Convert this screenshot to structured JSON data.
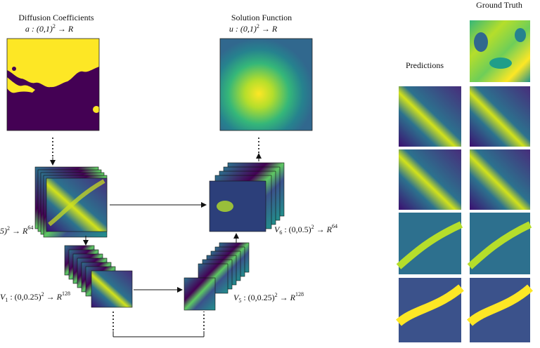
{
  "labels": {
    "diffusion_title": "Diffusion Coefficients",
    "diffusion_map": "a : (0,1)",
    "diffusion_map_tail": " → R",
    "solution_title": "Solution Function",
    "solution_map": "u : (0,1)",
    "solution_map_tail": " → R",
    "v_left": "5)",
    "v_left_tail": " → R",
    "v1": "V",
    "v1_sub": "1",
    "v1_rest": " : (0,0.25)",
    "v1_tail": " → R",
    "v5": "V",
    "v5_sub": "5",
    "v5_rest": " : (0,0.25)",
    "v5_tail": " → R",
    "v6": "V",
    "v6_sub": "6",
    "v6_rest": " : (0,0.5)",
    "v6_tail": " → R",
    "sq": "2",
    "dim64": "64",
    "dim128": "128",
    "predictions": "Predictions",
    "ground_truth": "Ground Truth"
  },
  "colors": {
    "viridis_dark": "#440154",
    "viridis_mid": "#21918c",
    "viridis_light": "#5ec962",
    "viridis_bright": "#fde725"
  },
  "panels": [
    "input-a",
    "output-u",
    "prediction-1",
    "prediction-2",
    "prediction-3",
    "prediction-4",
    "truth-1",
    "truth-2",
    "truth-3",
    "truth-4",
    "truth-top"
  ]
}
